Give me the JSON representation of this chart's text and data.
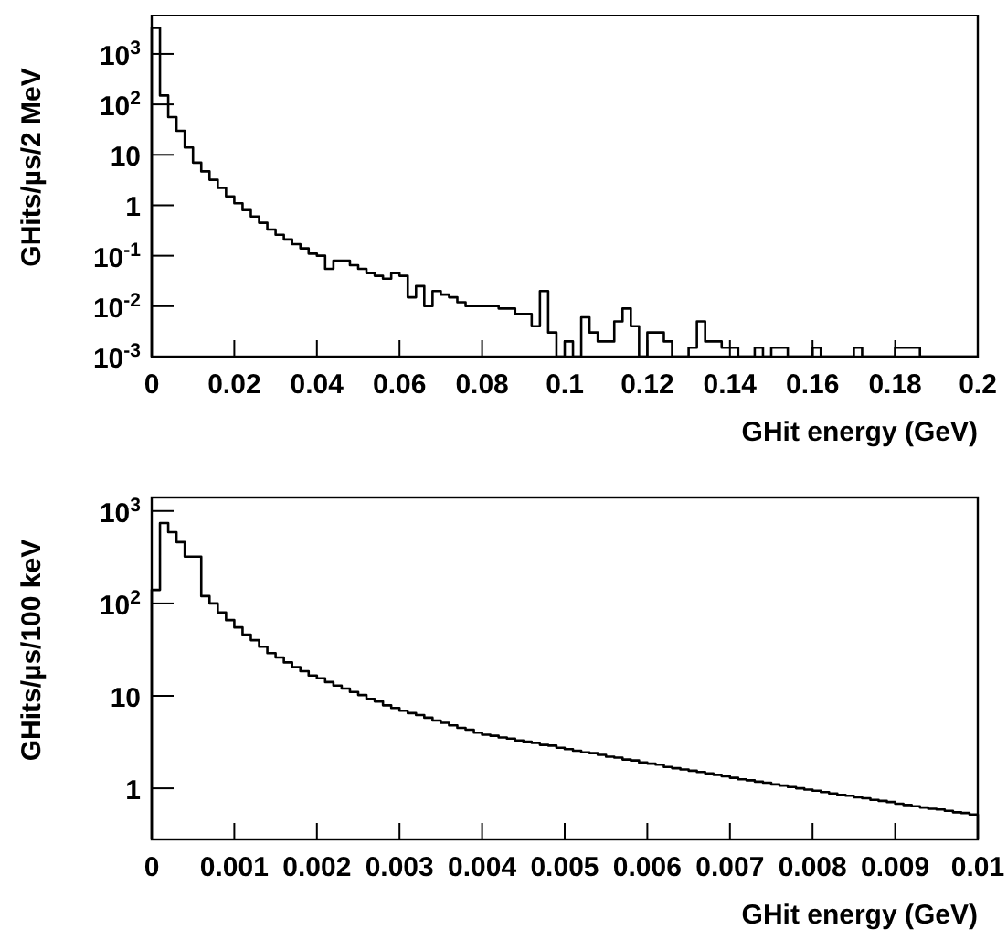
{
  "chart_data": [
    {
      "type": "histogram",
      "xlabel": "GHit energy (GeV)",
      "ylabel": "GHits/µs/2 MeV",
      "log": "y",
      "color": "#000000",
      "bins": [
        0,
        0.002,
        0.004,
        0.006,
        0.008,
        0.01,
        0.012,
        0.014,
        0.016,
        0.018,
        0.02,
        0.022,
        0.024,
        0.026,
        0.028,
        0.03,
        0.032,
        0.034,
        0.036,
        0.038,
        0.04,
        0.042,
        0.044,
        0.046,
        0.048,
        0.05,
        0.052,
        0.054,
        0.056,
        0.058,
        0.06,
        0.062,
        0.064,
        0.066,
        0.068,
        0.07,
        0.072,
        0.074,
        0.076,
        0.078,
        0.08,
        0.082,
        0.084,
        0.086,
        0.088,
        0.09,
        0.092,
        0.094,
        0.096,
        0.098,
        0.1,
        0.102,
        0.104,
        0.106,
        0.108,
        0.11,
        0.112,
        0.114,
        0.116,
        0.118,
        0.12,
        0.122,
        0.124,
        0.126,
        0.128,
        0.13,
        0.132,
        0.134,
        0.136,
        0.138,
        0.14,
        0.142,
        0.144,
        0.146,
        0.148,
        0.15,
        0.152,
        0.154,
        0.156,
        0.158,
        0.16,
        0.162,
        0.164,
        0.166,
        0.168,
        0.17,
        0.172,
        0.174,
        0.176,
        0.178,
        0.18,
        0.182,
        0.184,
        0.186,
        0.188,
        0.19,
        0.192,
        0.194,
        0.196,
        0.198,
        0.2
      ],
      "values": [
        3300,
        150,
        56,
        30,
        14,
        7,
        4.7,
        3.2,
        2.2,
        1.5,
        1.1,
        0.8,
        0.6,
        0.45,
        0.33,
        0.26,
        0.21,
        0.17,
        0.14,
        0.11,
        0.1,
        0.055,
        0.08,
        0.08,
        0.065,
        0.055,
        0.045,
        0.04,
        0.035,
        0.045,
        0.04,
        0.015,
        0.025,
        0.01,
        0.02,
        0.017,
        0.015,
        0.012,
        0.01,
        0.01,
        0.01,
        0.01,
        0.009,
        0.009,
        0.007,
        0.007,
        0.004,
        0.02,
        0.003,
        null,
        0.002,
        null,
        0.006,
        0.003,
        0.002,
        0.002,
        0.005,
        0.009,
        0.004,
        null,
        0.003,
        0.003,
        0.002,
        null,
        null,
        0.0015,
        0.005,
        0.002,
        0.002,
        0.0015,
        0.0015,
        null,
        null,
        0.0015,
        null,
        0.0015,
        0.0015,
        null,
        null,
        null,
        0.0015,
        null,
        null,
        null,
        null,
        0.0015,
        null,
        null,
        null,
        null,
        0.0015,
        0.0015,
        0.0015,
        null,
        null,
        null,
        null,
        null,
        null,
        null
      ],
      "xlim": [
        0,
        0.2
      ],
      "xticks": [
        0,
        0.02,
        0.04,
        0.06,
        0.08,
        0.1,
        0.12,
        0.14,
        0.16,
        0.18,
        0.2
      ],
      "ylim": [
        0.001,
        6000
      ],
      "yticks": [
        {
          "value": 0.001,
          "label": "10$^{-3}$"
        },
        {
          "value": 0.01,
          "label": "10$^{-2}$"
        },
        {
          "value": 0.1,
          "label": "10$^{-1}$"
        },
        {
          "value": 1,
          "label": "1"
        },
        {
          "value": 10,
          "label": "10"
        },
        {
          "value": 100,
          "label": "10$^{2}$"
        },
        {
          "value": 1000,
          "label": "10$^{3}$"
        }
      ]
    },
    {
      "type": "histogram",
      "xlabel": "GHit energy (GeV)",
      "ylabel": "GHits/µs/100 keV",
      "log": "y",
      "color": "#000000",
      "bins": [
        0,
        0.0001,
        0.0002,
        0.0003,
        0.0004,
        0.0005,
        0.0006,
        0.0007,
        0.0008,
        0.0009,
        0.001,
        0.0011,
        0.0012,
        0.0013,
        0.0014,
        0.0015,
        0.0016,
        0.0017,
        0.0018,
        0.0019,
        0.002,
        0.0021,
        0.0022,
        0.0023,
        0.0024,
        0.0025,
        0.0026,
        0.0027,
        0.0028,
        0.0029,
        0.003,
        0.0031,
        0.0032,
        0.0033,
        0.0034,
        0.0035,
        0.0036,
        0.0037,
        0.0038,
        0.0039,
        0.004,
        0.0041,
        0.0042,
        0.0043,
        0.0044,
        0.0045,
        0.0046,
        0.0047,
        0.0048,
        0.0049,
        0.005,
        0.0051,
        0.0052,
        0.0053,
        0.0054,
        0.0055,
        0.0056,
        0.0057,
        0.0058,
        0.0059,
        0.006,
        0.0061,
        0.0062,
        0.0063,
        0.0064,
        0.0065,
        0.0066,
        0.0067,
        0.0068,
        0.0069,
        0.007,
        0.0071,
        0.0072,
        0.0073,
        0.0074,
        0.0075,
        0.0076,
        0.0077,
        0.0078,
        0.0079,
        0.008,
        0.0081,
        0.0082,
        0.0083,
        0.0084,
        0.0085,
        0.0086,
        0.0087,
        0.0088,
        0.0089,
        0.009,
        0.0091,
        0.0092,
        0.0093,
        0.0094,
        0.0095,
        0.0096,
        0.0097,
        0.0098,
        0.0099,
        0.01
      ],
      "values": [
        140,
        740,
        590,
        460,
        320,
        320,
        120,
        100,
        80,
        66,
        55,
        46,
        40,
        34,
        29,
        26,
        23,
        20.5,
        18.5,
        16.6,
        15.5,
        14.1,
        12.9,
        12,
        11,
        10.2,
        9.3,
        8.7,
        7.9,
        7.4,
        6.9,
        6.5,
        6.2,
        5.8,
        5.4,
        5.1,
        4.8,
        4.5,
        4.3,
        4,
        3.8,
        3.7,
        3.55,
        3.45,
        3.3,
        3.2,
        3.1,
        2.95,
        2.9,
        2.75,
        2.65,
        2.55,
        2.45,
        2.4,
        2.3,
        2.2,
        2.15,
        2.05,
        2,
        1.9,
        1.85,
        1.8,
        1.7,
        1.65,
        1.6,
        1.55,
        1.5,
        1.45,
        1.4,
        1.35,
        1.3,
        1.25,
        1.22,
        1.18,
        1.15,
        1.1,
        1.07,
        1.03,
        1,
        0.97,
        0.94,
        0.91,
        0.88,
        0.85,
        0.83,
        0.8,
        0.78,
        0.75,
        0.73,
        0.71,
        0.68,
        0.66,
        0.64,
        0.62,
        0.6,
        0.59,
        0.57,
        0.55,
        0.54,
        0.52
      ],
      "xlim": [
        0,
        0.01
      ],
      "xticks": [
        0,
        0.001,
        0.002,
        0.003,
        0.004,
        0.005,
        0.006,
        0.007,
        0.008,
        0.009,
        0.01
      ],
      "ylim": [
        0.28,
        1400
      ],
      "yticks": [
        {
          "value": 1,
          "label": "1"
        },
        {
          "value": 10,
          "label": "10"
        },
        {
          "value": 100,
          "label": "10$^{2}$"
        },
        {
          "value": 1000,
          "label": "10$^{3}$"
        }
      ]
    }
  ]
}
